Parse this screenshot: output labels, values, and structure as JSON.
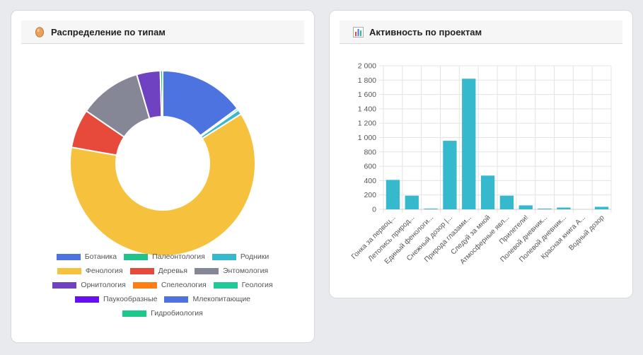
{
  "left_card": {
    "title": "Распределение по типам",
    "icon": "egg-icon"
  },
  "right_card": {
    "title": "Активность по проектам",
    "icon": "bar-chart-icon"
  },
  "chart_data": [
    {
      "type": "pie",
      "variant": "doughnut",
      "title": "Распределение по типам",
      "legend_position": "bottom",
      "categories": [
        "Ботаника",
        "Палеонтология",
        "Родники",
        "Фенология",
        "Деревья",
        "Энтомология",
        "Орнитология",
        "Спелеология",
        "Геология",
        "Паукообразные",
        "Млекопитающие",
        "Гидробиология"
      ],
      "colors": [
        "#4c73df",
        "#1fc48a",
        "#36b9cc",
        "#f6c23e",
        "#e74a3b",
        "#858796",
        "#6f42c1",
        "#fd7e14",
        "#20c997",
        "#6610f2",
        "#4e73df",
        "#1cc88a"
      ],
      "values": [
        14.5,
        0.3,
        0.8,
        60.0,
        6.6,
        10.6,
        4.0,
        0.0,
        0.0,
        0.0,
        0.0,
        0.4
      ]
    },
    {
      "type": "bar",
      "title": "Активность по проектам",
      "grid": true,
      "legend": "none",
      "color": "#36b9cc",
      "categories": [
        "Гонка за первоц...",
        "Летопись природ...",
        "Единый фенологи...",
        "Снежный дозор |...",
        "Природа глазами...",
        "Следуй за мной",
        "Атмосферные явл...",
        "Прилетели!",
        "Полевой дневник...",
        "Полевой дневник...",
        "Красная книга А...",
        "Водный дозор"
      ],
      "values": [
        410,
        190,
        5,
        955,
        1820,
        470,
        190,
        55,
        10,
        25,
        0,
        35
      ],
      "ylim": [
        0,
        2000
      ],
      "yticks": [
        "0",
        "200",
        "400",
        "600",
        "800",
        "1 000",
        "1 200",
        "1 400",
        "1 600",
        "1 800",
        "2 000"
      ]
    }
  ]
}
